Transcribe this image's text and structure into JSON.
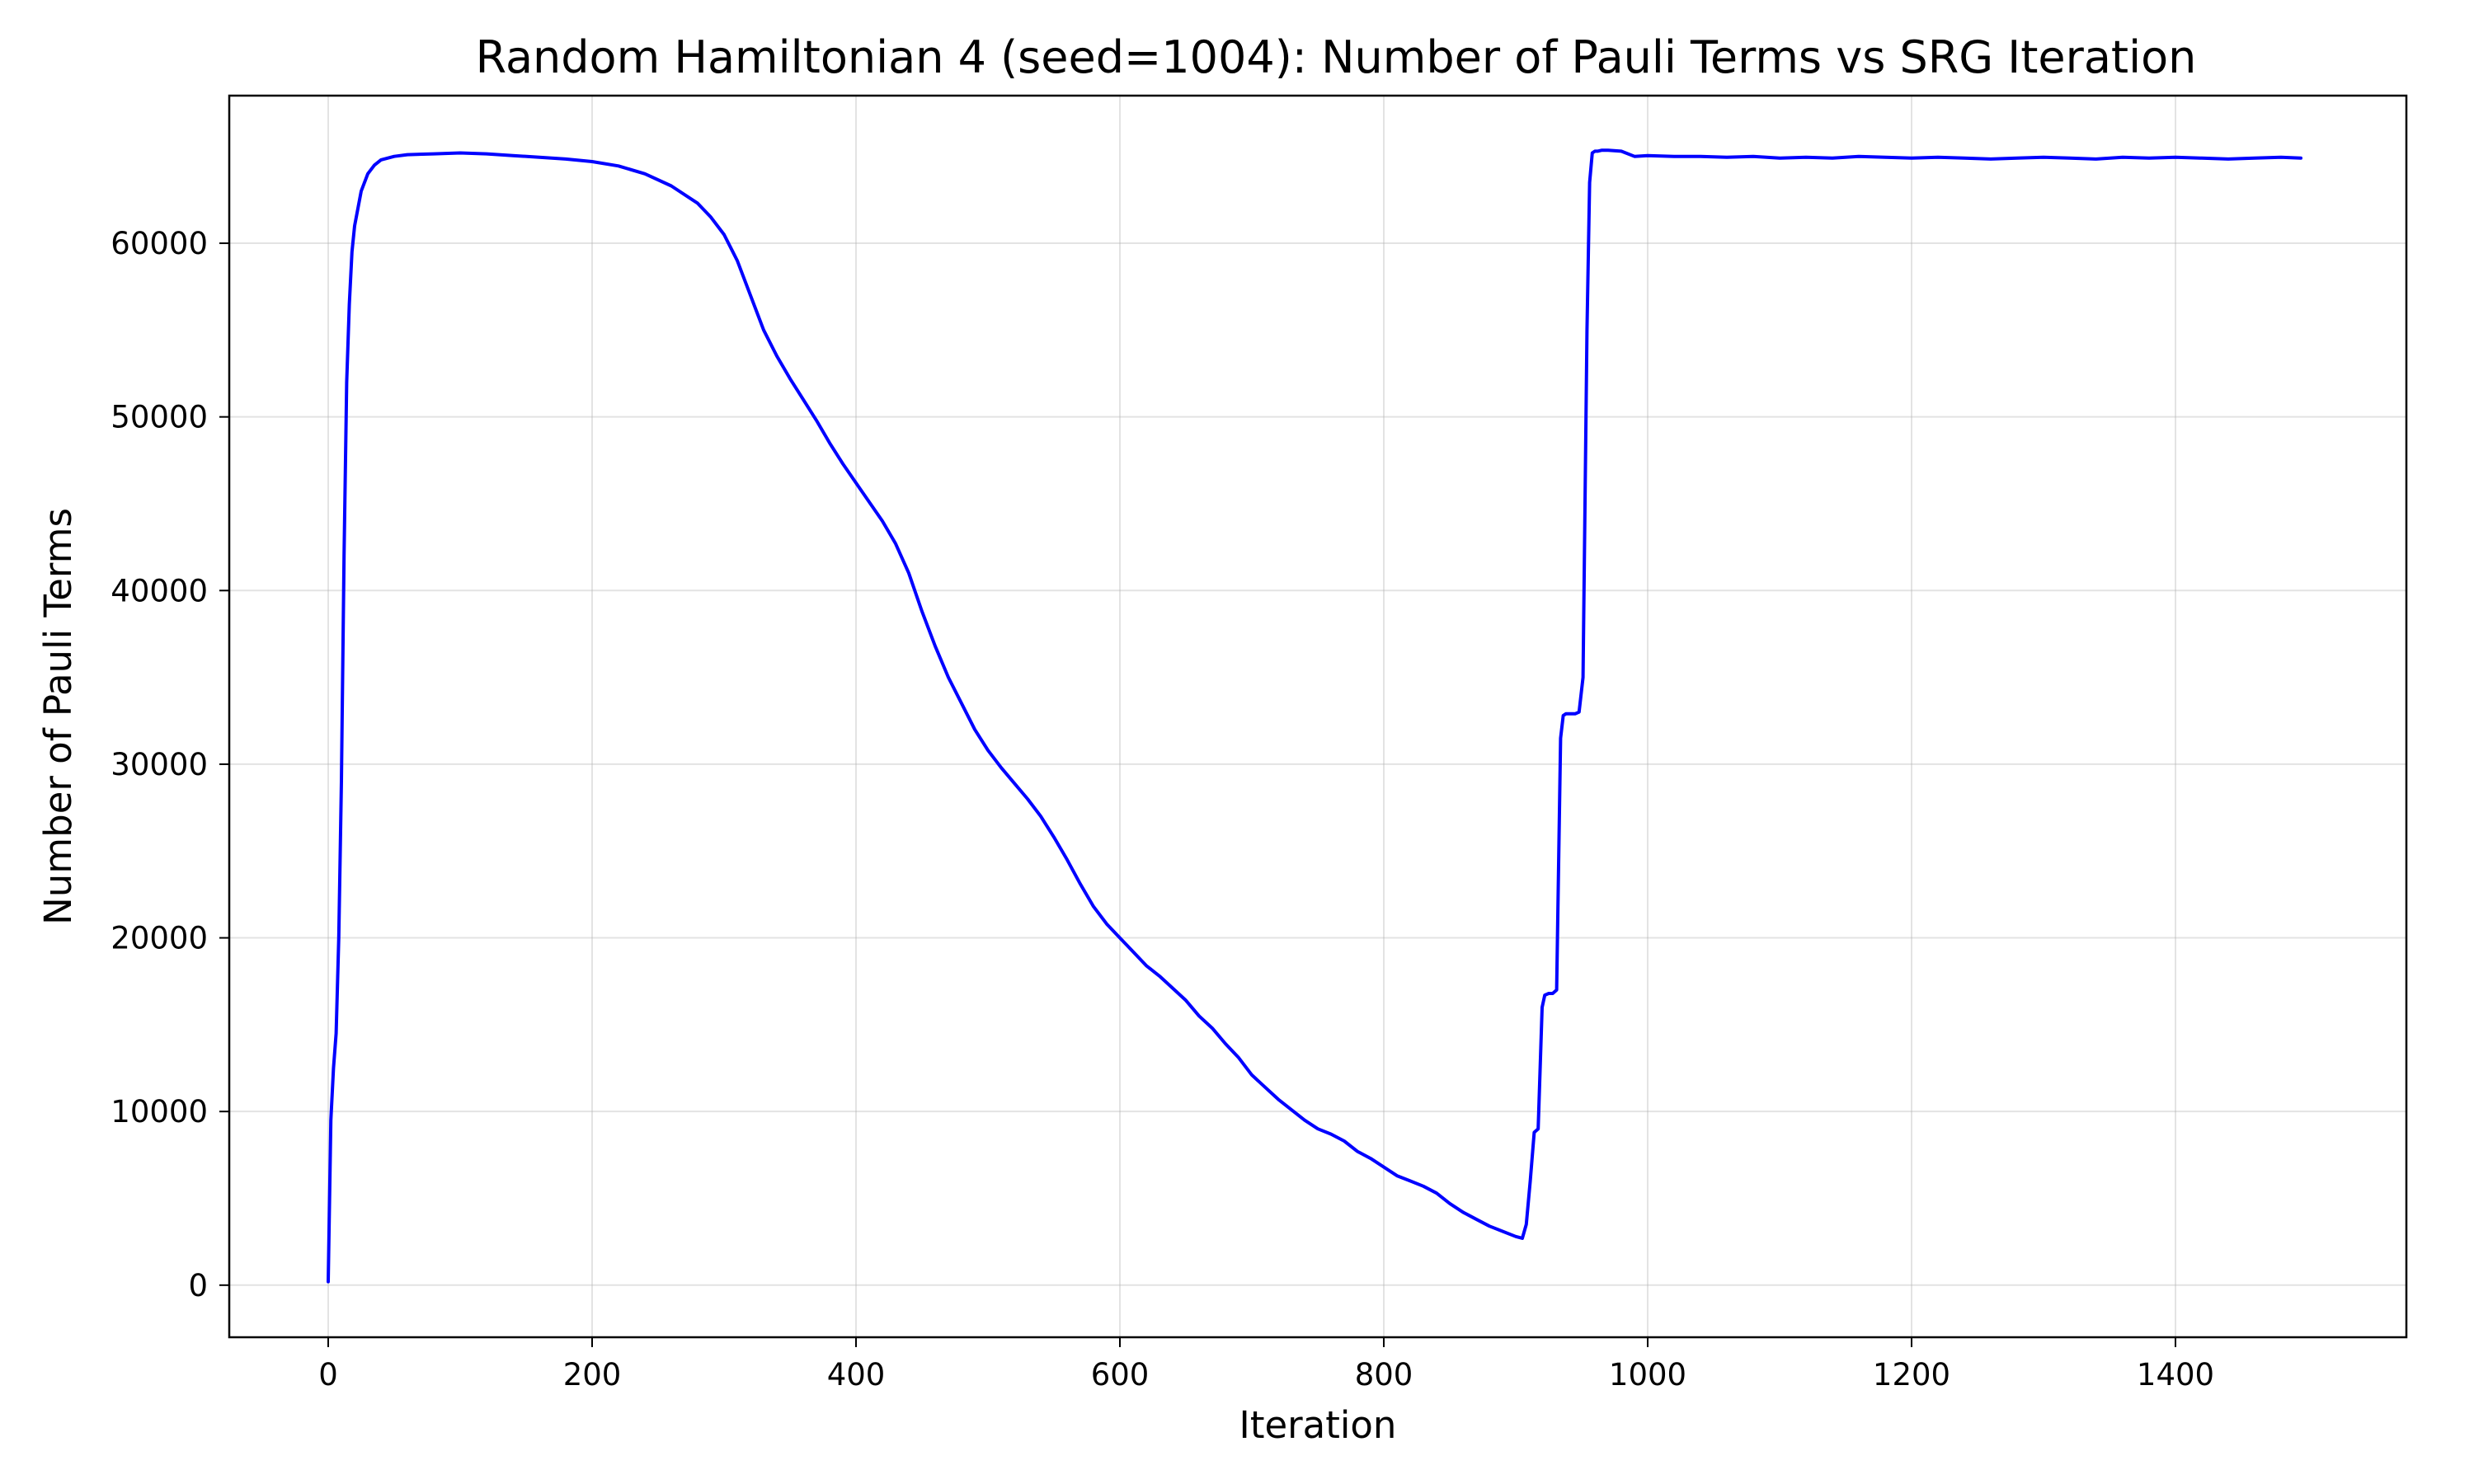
{
  "chart_data": {
    "type": "line",
    "title": "Random Hamiltonian 4 (seed=1004): Number of Pauli Terms vs SRG Iteration",
    "xlabel": "Iteration",
    "ylabel": "Number of Pauli Terms",
    "xlim": [
      -75,
      1575
    ],
    "ylim": [
      -3000,
      68500
    ],
    "xticks": [
      0,
      200,
      400,
      600,
      800,
      1000,
      1200,
      1400
    ],
    "yticks": [
      0,
      10000,
      20000,
      30000,
      40000,
      50000,
      60000
    ],
    "grid": true,
    "legend": "none",
    "series": [
      {
        "color": "#0000ff",
        "x": [
          0,
          2,
          4,
          6,
          8,
          10,
          12,
          14,
          16,
          18,
          20,
          25,
          30,
          35,
          40,
          50,
          60,
          80,
          100,
          120,
          140,
          160,
          180,
          200,
          220,
          240,
          260,
          280,
          290,
          300,
          310,
          320,
          330,
          340,
          350,
          360,
          370,
          380,
          390,
          400,
          410,
          420,
          430,
          440,
          450,
          460,
          470,
          480,
          490,
          500,
          510,
          520,
          530,
          540,
          550,
          560,
          570,
          580,
          590,
          600,
          610,
          620,
          630,
          640,
          650,
          660,
          670,
          680,
          690,
          700,
          710,
          720,
          730,
          740,
          750,
          760,
          770,
          780,
          790,
          800,
          810,
          820,
          830,
          840,
          850,
          860,
          870,
          880,
          890,
          900,
          905,
          908,
          911,
          914,
          917,
          920,
          922,
          925,
          928,
          931,
          934,
          936,
          938,
          940,
          942,
          945,
          948,
          951,
          954,
          956,
          958,
          960,
          962,
          965,
          970,
          980,
          990,
          1000,
          1020,
          1040,
          1060,
          1080,
          1100,
          1120,
          1140,
          1160,
          1180,
          1200,
          1220,
          1240,
          1260,
          1280,
          1300,
          1320,
          1340,
          1360,
          1380,
          1400,
          1420,
          1440,
          1460,
          1480,
          1495
        ],
        "y": [
          200,
          9500,
          12500,
          14500,
          20000,
          29000,
          42000,
          52000,
          56500,
          59500,
          61000,
          63000,
          64000,
          64500,
          64800,
          65000,
          65100,
          65150,
          65200,
          65150,
          65050,
          64950,
          64850,
          64700,
          64450,
          64000,
          63300,
          62300,
          61500,
          60500,
          59000,
          57000,
          55000,
          53500,
          52200,
          51000,
          49800,
          48500,
          47300,
          46200,
          45100,
          44000,
          42700,
          41000,
          38800,
          36800,
          35000,
          33500,
          32000,
          30800,
          29800,
          28900,
          28000,
          27000,
          25800,
          24500,
          23100,
          21800,
          20800,
          20000,
          19200,
          18400,
          17800,
          17100,
          16400,
          15500,
          14800,
          13900,
          13100,
          12100,
          11400,
          10700,
          10100,
          9500,
          9000,
          8700,
          8300,
          7700,
          7300,
          6800,
          6300,
          6000,
          5700,
          5300,
          4700,
          4200,
          3800,
          3400,
          3100,
          2800,
          2700,
          3500,
          6000,
          8800,
          9000,
          16000,
          16700,
          16800,
          16800,
          17000,
          31500,
          32800,
          32900,
          32900,
          32900,
          32900,
          33000,
          35000,
          55000,
          63500,
          65200,
          65300,
          65300,
          65350,
          65350,
          65300,
          65000,
          65050,
          65000,
          65000,
          64950,
          65000,
          64900,
          64950,
          64900,
          65000,
          64950,
          64900,
          64950,
          64900,
          64850,
          64900,
          64950,
          64900,
          64850,
          64950,
          64900,
          64950,
          64900,
          64850,
          64900,
          64950,
          64900
        ]
      }
    ]
  }
}
